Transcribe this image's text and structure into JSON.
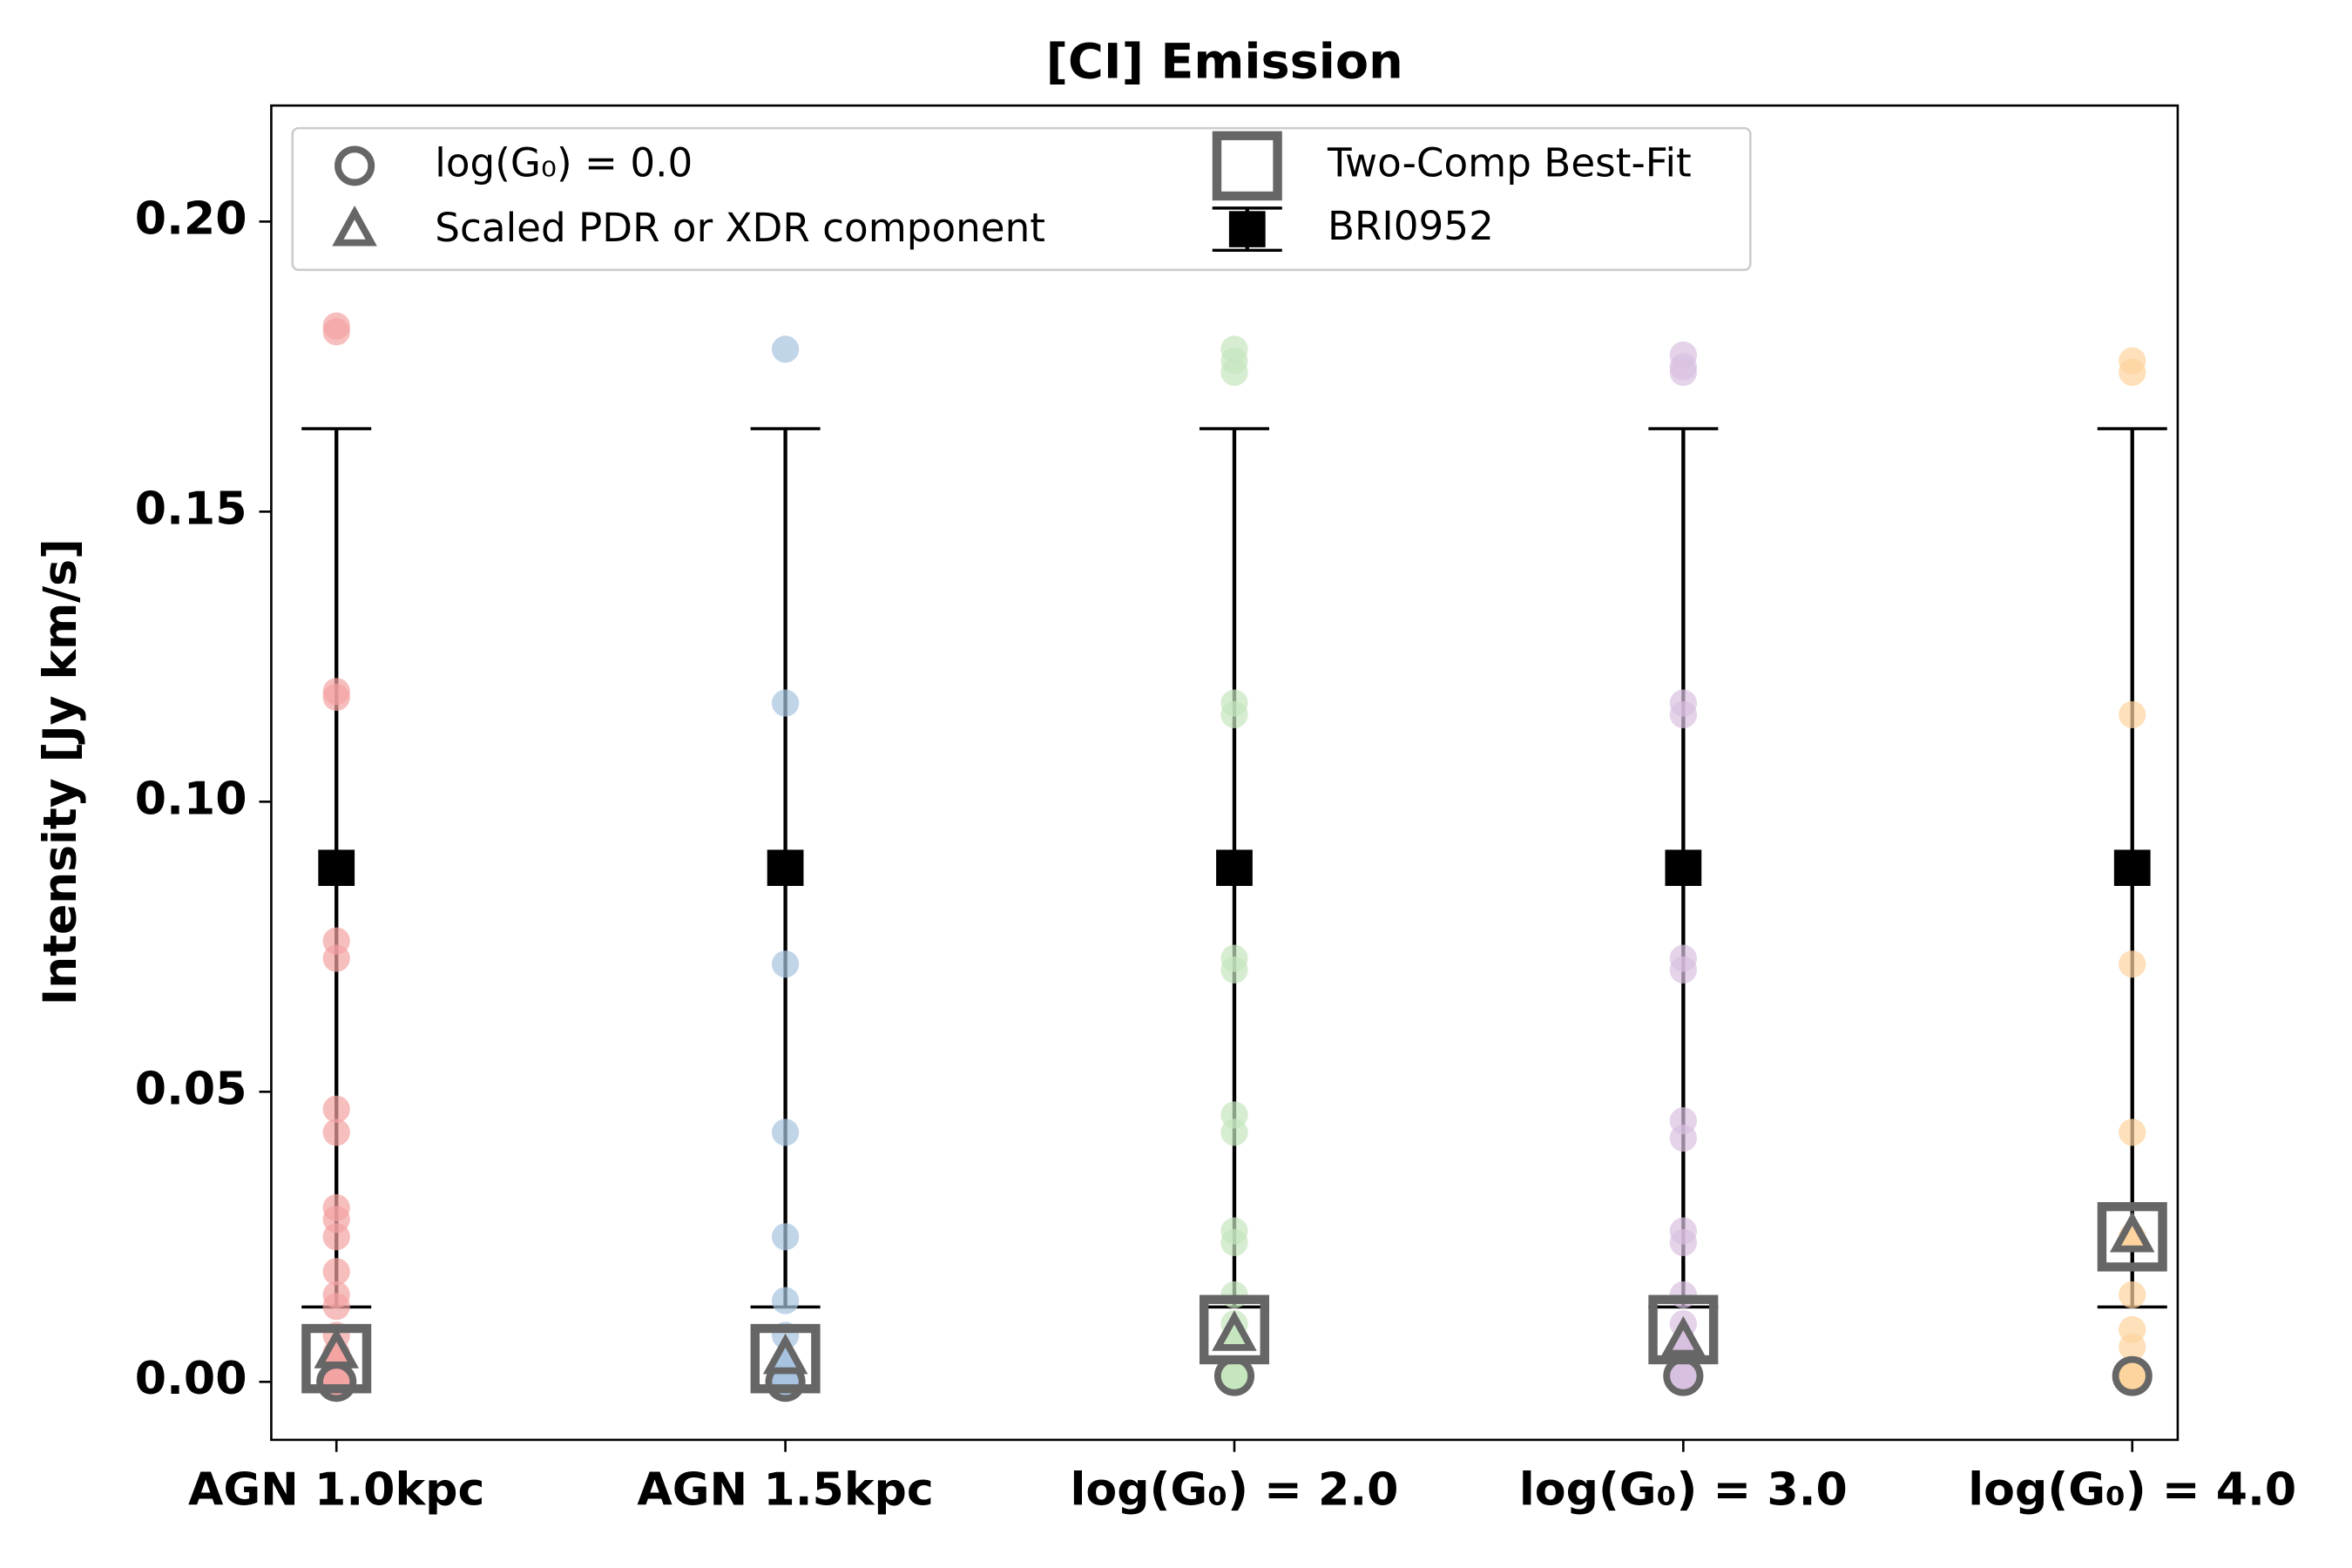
{
  "chart_data": {
    "type": "scatter",
    "title": "[CI] Emission",
    "ylabel": "Intensity [Jy km/s]",
    "categories": [
      "AGN 1.0kpc",
      "AGN 1.5kpc",
      "log(G₀) = 2.0",
      "log(G₀) = 3.0",
      "log(G₀) = 4.0"
    ],
    "ylim": [
      -0.01,
      0.22
    ],
    "yticks": [
      {
        "value": 0,
        "label": "0.00"
      },
      {
        "value": 0.05,
        "label": "0.05"
      },
      {
        "value": 0.1,
        "label": "0.10"
      },
      {
        "value": 0.15,
        "label": "0.15"
      },
      {
        "value": 0.2,
        "label": "0.20"
      }
    ],
    "model_points": [
      {
        "color": "#f4a3a3",
        "values": [
          0.181,
          0.182,
          0.119,
          0.118,
          0.076,
          0.073,
          0.047,
          0.043,
          0.03,
          0.028,
          0.025,
          0.019,
          0.015,
          0.013,
          0.008,
          0.005,
          0.002
        ]
      },
      {
        "color": "#a7c3e0",
        "values": [
          0.178,
          0.117,
          0.072,
          0.043,
          0.025,
          0.014,
          0.008
        ]
      },
      {
        "color": "#c6e6bf",
        "values": [
          0.178,
          0.176,
          0.174,
          0.117,
          0.115,
          0.073,
          0.071,
          0.046,
          0.043,
          0.026,
          0.024,
          0.015,
          0.01
        ]
      },
      {
        "color": "#d8c1e0",
        "values": [
          0.177,
          0.175,
          0.174,
          0.117,
          0.115,
          0.073,
          0.071,
          0.045,
          0.042,
          0.026,
          0.024,
          0.015,
          0.01
        ]
      },
      {
        "color": "#fdd39e",
        "values": [
          0.176,
          0.174,
          0.115,
          0.072,
          0.043,
          0.025,
          0.015,
          0.009,
          0.006
        ]
      }
    ],
    "series": [
      {
        "name": "log(G₀) = 0.0",
        "marker": "circle",
        "color": "#666666",
        "values": [
          0,
          0,
          0.001,
          0.001,
          0.001
        ]
      },
      {
        "name": "Scaled PDR or XDR component",
        "marker": "triangle",
        "color": "#666666",
        "values": [
          0.005,
          0.004,
          0.008,
          0.007,
          0.025
        ]
      },
      {
        "name": "Two-Comp Best-Fit",
        "marker": "square",
        "color": "#666666",
        "values": [
          0.004,
          0.004,
          0.009,
          0.009,
          0.025
        ]
      },
      {
        "name": "BRI0952",
        "marker": "errorbar",
        "color": "#000000",
        "values": [
          0.0886,
          0.0886,
          0.0886,
          0.0886,
          0.0886
        ],
        "errors": [
          0.0757,
          0.0757,
          0.0757,
          0.0757,
          0.0757
        ]
      }
    ]
  }
}
